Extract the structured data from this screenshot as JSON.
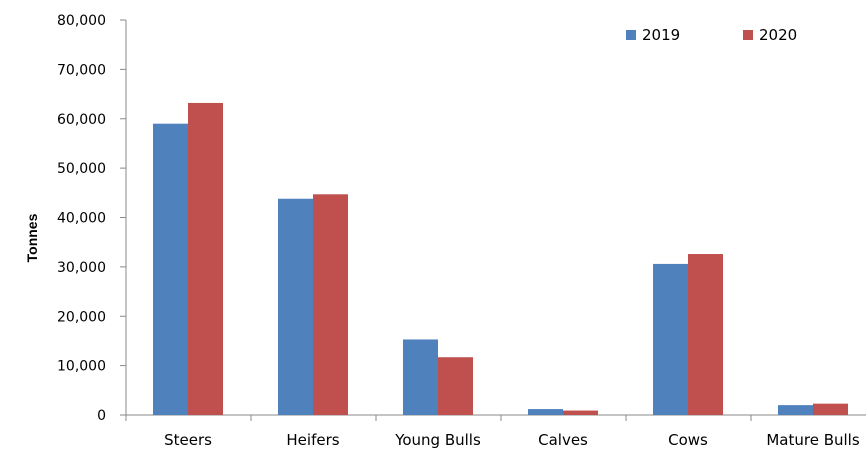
{
  "chart_data": {
    "type": "bar",
    "title": "",
    "xlabel": "",
    "ylabel": "Tonnes",
    "ylim": [
      0,
      80000
    ],
    "yticks": [
      0,
      10000,
      20000,
      30000,
      40000,
      50000,
      60000,
      70000,
      80000
    ],
    "ytick_labels": [
      "0",
      "10,000",
      "20,000",
      "30,000",
      "40,000",
      "50,000",
      "60,000",
      "70,000",
      "80,000"
    ],
    "categories": [
      "Steers",
      "Heifers",
      "Young Bulls",
      "Calves",
      "Cows",
      "Mature Bulls"
    ],
    "series": [
      {
        "name": "2019",
        "color": "#4f81bd",
        "values": [
          59000,
          43800,
          15300,
          1200,
          30600,
          2000
        ]
      },
      {
        "name": "2020",
        "color": "#c0504d",
        "values": [
          63200,
          44700,
          11700,
          900,
          32600,
          2300
        ]
      }
    ],
    "legend": {
      "position": "top-right"
    },
    "grid": false
  }
}
